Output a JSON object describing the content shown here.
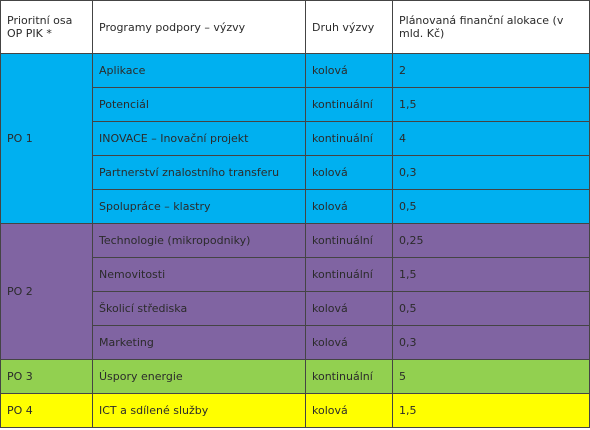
{
  "table": {
    "header": [
      "Prioritní osa OP PIK *",
      "Programy podpory – výzvy",
      "Druh výzvy",
      "Plánovaná finanční alokace (v mld. Kč)"
    ],
    "groups": [
      {
        "axis": "PO 1",
        "rows": [
          [
            "Aplikace",
            "kolová",
            "2"
          ],
          [
            "Potenciál",
            "kontinuální",
            "1,5"
          ],
          [
            "INOVACE – Inovační projekt",
            "kontinuální",
            "4"
          ],
          [
            "Partnerství znalostního transferu",
            "kolová",
            "0,3"
          ],
          [
            "Spolupráce – klastry",
            "kolová",
            "0,5"
          ]
        ]
      },
      {
        "axis": "PO 2",
        "rows": [
          [
            "Technologie (mikropodniky)",
            "kontinuální",
            "0,25"
          ],
          [
            "Nemovitosti",
            "kontinuální",
            "1,5"
          ],
          [
            "Školicí střediska",
            "kolová",
            "0,5"
          ],
          [
            "Marketing",
            "kolová",
            "0,3"
          ]
        ]
      },
      {
        "axis": "PO 3",
        "rows": [
          [
            "Úspory energie",
            "kontinuální",
            "5"
          ]
        ]
      },
      {
        "axis": "PO 4",
        "rows": [
          [
            "ICT a sdílené služby",
            "kolová",
            "1,5"
          ]
        ]
      }
    ]
  }
}
